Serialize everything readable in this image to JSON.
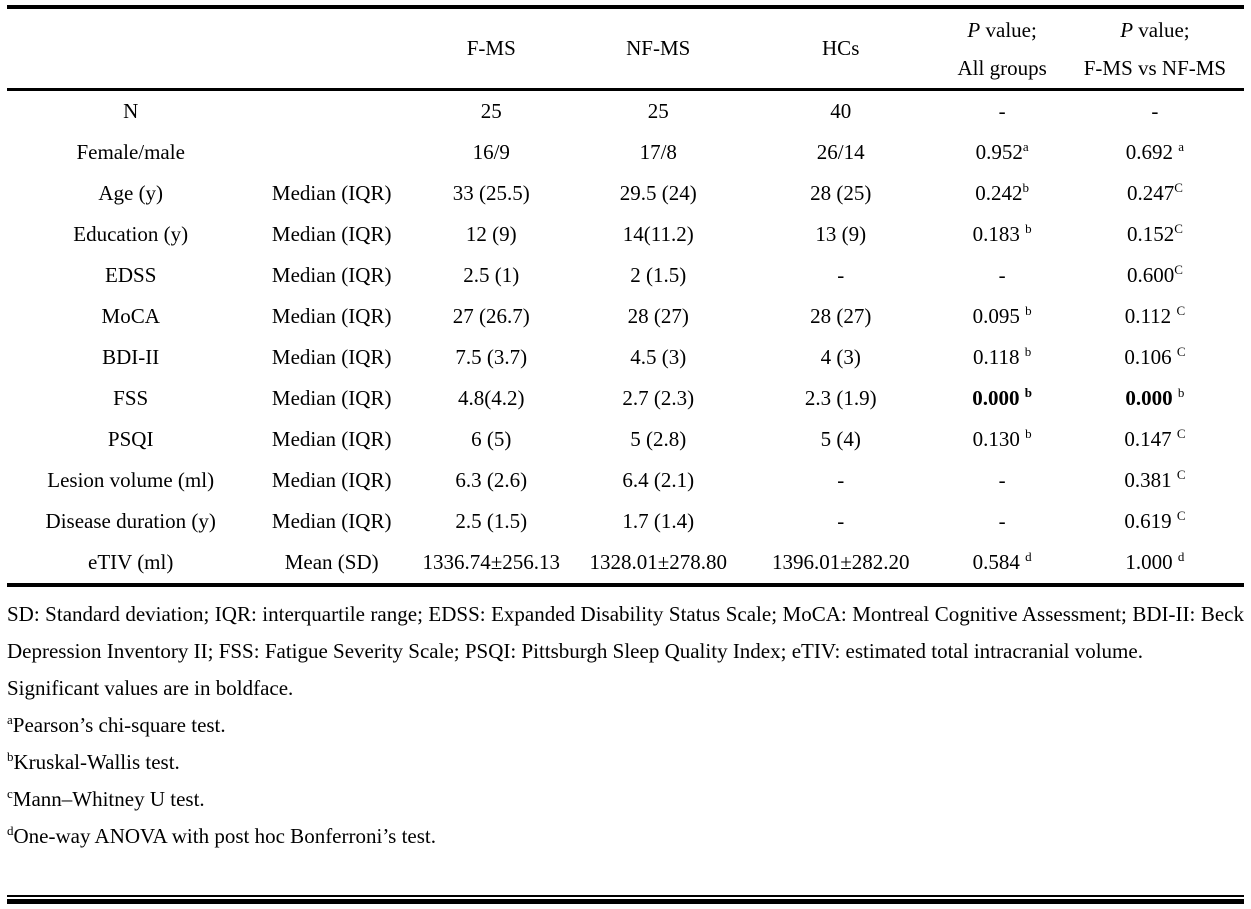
{
  "colors": {
    "text": "#000000",
    "background": "#ffffff",
    "rule": "#000000"
  },
  "table": {
    "header": {
      "fms": "F-MS",
      "nfms": "NF-MS",
      "hcs": "HCs",
      "p_italic": "P",
      "p_rest": "value;",
      "all_groups": "All groups",
      "fms_vs_nfms": "F-MS vs NF-MS"
    },
    "rows": [
      {
        "label": "N",
        "stat": "",
        "fms": "25",
        "nfms": "25",
        "hcs": "40",
        "p_all": "-",
        "p_all_sup": "",
        "p_cmp": "-",
        "p_cmp_sup": ""
      },
      {
        "label": "Female/male",
        "stat": "",
        "fms": "16/9",
        "nfms": "17/8",
        "hcs": "26/14",
        "p_all": "0.952",
        "p_all_sup": "a",
        "p_cmp": "0.692 ",
        "p_cmp_sup": "a"
      },
      {
        "label": "Age (y)",
        "stat": "Median (IQR)",
        "fms": "33 (25.5)",
        "nfms": "29.5 (24)",
        "hcs": "28 (25)",
        "p_all": "0.242",
        "p_all_sup": "b",
        "p_cmp": "0.247",
        "p_cmp_sup": "C"
      },
      {
        "label": "Education (y)",
        "stat": "Median (IQR)",
        "fms": "12 (9)",
        "nfms": "14(11.2)",
        "hcs": "13 (9)",
        "p_all": "0.183 ",
        "p_all_sup": "b",
        "p_cmp": "0.152",
        "p_cmp_sup": "C"
      },
      {
        "label": "EDSS",
        "stat": "Median (IQR)",
        "fms": "2.5 (1)",
        "nfms": "2 (1.5)",
        "hcs": "-",
        "p_all": "-",
        "p_all_sup": "",
        "p_cmp": "0.600",
        "p_cmp_sup": "C"
      },
      {
        "label": "MoCA",
        "stat": "Median (IQR)",
        "fms": "27 (26.7)",
        "nfms": "28 (27)",
        "hcs": "28 (27)",
        "p_all": "0.095 ",
        "p_all_sup": "b",
        "p_cmp": "0.112 ",
        "p_cmp_sup": "C"
      },
      {
        "label": "BDI-II",
        "stat": "Median (IQR)",
        "fms": "7.5 (3.7)",
        "nfms": "4.5 (3)",
        "hcs": "4 (3)",
        "p_all": "0.118 ",
        "p_all_sup": "b",
        "p_cmp": "0.106 ",
        "p_cmp_sup": "C"
      },
      {
        "label": "FSS",
        "stat": "Median (IQR)",
        "fms": "4.8(4.2)",
        "nfms": "2.7 (2.3)",
        "hcs": "2.3 (1.9)",
        "p_all": "0.000 ",
        "p_all_sup": "b",
        "p_cmp": "0.000 ",
        "p_cmp_sup": "b",
        "bold": true
      },
      {
        "label": "PSQI",
        "stat": "Median (IQR)",
        "fms": "6 (5)",
        "nfms": "5 (2.8)",
        "hcs": "5 (4)",
        "p_all": "0.130 ",
        "p_all_sup": "b",
        "p_cmp": "0.147 ",
        "p_cmp_sup": "C"
      },
      {
        "label": "Lesion volume (ml)",
        "stat": "Median (IQR)",
        "fms": "6.3 (2.6)",
        "nfms": "6.4 (2.1)",
        "hcs": "-",
        "p_all": "-",
        "p_all_sup": "",
        "p_cmp": "0.381 ",
        "p_cmp_sup": "C"
      },
      {
        "label": "Disease duration (y)",
        "stat": "Median (IQR)",
        "fms": "2.5 (1.5)",
        "nfms": "1.7 (1.4)",
        "hcs": "-",
        "p_all": "-",
        "p_all_sup": "",
        "p_cmp": "0.619 ",
        "p_cmp_sup": "C"
      },
      {
        "label": "eTIV (ml)",
        "stat": "Mean (SD)",
        "fms": "1336.74±256.13",
        "nfms": "1328.01±278.80",
        "hcs": "1396.01±282.20",
        "p_all": "0.584 ",
        "p_all_sup": "d",
        "p_cmp": "1.000 ",
        "p_cmp_sup": "d"
      }
    ]
  },
  "footnotes": {
    "abbreviations": "SD: Standard deviation; IQR: interquartile range; EDSS: Expanded Disability Status Scale; MoCA: Montreal Cognitive Assessment; BDI-II: Beck Depression Inventory II; FSS: Fatigue Severity Scale; PSQI: Pittsburgh Sleep Quality Index; eTIV: estimated total intracranial volume.",
    "significance": "Significant values are in boldface.",
    "notes": [
      {
        "sup": "a",
        "text": "Pearson’s chi-square test."
      },
      {
        "sup": "b",
        "text": "Kruskal-Wallis test."
      },
      {
        "sup": "c",
        "text": "Mann–Whitney U test."
      },
      {
        "sup": "d",
        "text": "One-way ANOVA with post hoc Bonferroni’s test."
      }
    ]
  }
}
